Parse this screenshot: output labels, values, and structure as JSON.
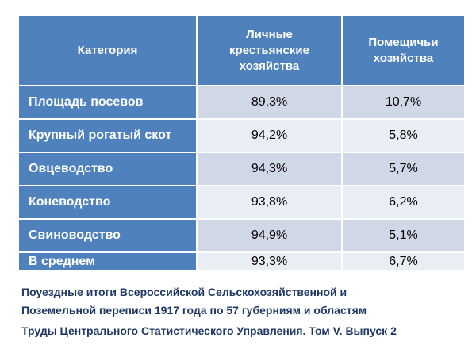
{
  "table": {
    "headers": [
      "Категория",
      "Личные крестьянские хозяйства",
      "Помещичьи хозяйства"
    ],
    "rows": [
      {
        "category": "Площадь посевов",
        "peasant": "89,3%",
        "landlord": "10,7%"
      },
      {
        "category": "Крупный рогатый скот",
        "peasant": "94,2%",
        "landlord": "5,8%"
      },
      {
        "category": "Овцеводство",
        "peasant": "94,3%",
        "landlord": "5,7%"
      },
      {
        "category": "Коневодство",
        "peasant": "93,8%",
        "landlord": "6,2%"
      },
      {
        "category": "Свиноводство",
        "peasant": "94,9%",
        "landlord": "5,1%"
      },
      {
        "category": "В среднем",
        "peasant": "93,3%",
        "landlord": "6,7%"
      }
    ]
  },
  "caption": {
    "line1": "Поуездные итоги Всероссийской Сельскохозяйственной и",
    "line2": "Поземельной  переписи 1917 года по 57 губерниям и областям",
    "line3": "Труды Центрального Статистического Управления. Том V. Выпуск 2"
  }
}
